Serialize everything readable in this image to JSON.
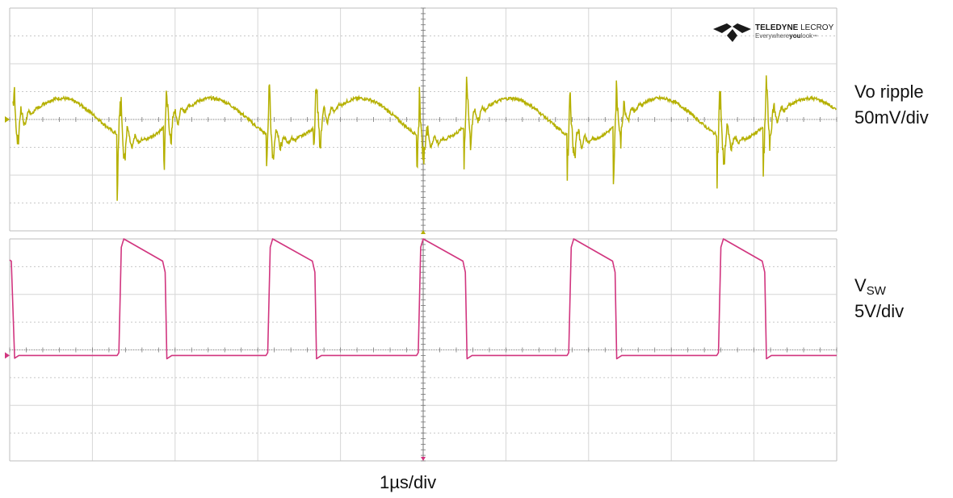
{
  "brand": {
    "name": "TELEDYNE",
    "name_suffix": "LECROY",
    "tagline_pre": "Everywhere",
    "tagline_bold": "you",
    "tagline_post": "look",
    "trademark": "™"
  },
  "channels": {
    "top": {
      "label_line1": "Vo ripple",
      "label_line2": "50mV/div",
      "color": "#b5b000"
    },
    "bottom": {
      "label_main": "V",
      "label_sub": "SW",
      "label_line2": "5V/div",
      "color": "#d1357f"
    }
  },
  "timebase": "1µs/div",
  "colors": {
    "grid_solid": "#d6d6d6",
    "grid_dotted": "#c8c8c8",
    "center_axis": "#777777",
    "panel_border": "#bdbdbd",
    "logo": "#1a1a1a"
  },
  "chart_data": {
    "type": "line",
    "x_unit": "div",
    "x_range": [
      0,
      10
    ],
    "grid": true,
    "panels": [
      {
        "name": "Vo ripple",
        "scale": "50mV/div",
        "y_unit": "div",
        "y_range": [
          -2,
          2
        ],
        "waveform": "sinusoidal ripple with ringing spikes at switching edges",
        "period_div": 1.81,
        "amplitude_div": 0.38,
        "rising_edges_div": [
          1.32,
          3.12,
          4.94,
          6.76,
          8.57
        ],
        "falling_edges_div": [
          0.03,
          1.88,
          3.69,
          5.51,
          7.32,
          9.13
        ],
        "spike_amplitude_div": 0.9
      },
      {
        "name": "VSW",
        "scale": "5V/div",
        "y_unit": "div",
        "y_range": [
          -2,
          2
        ],
        "waveform": "rectangular switch node pulses",
        "period_div": 1.81,
        "high_level_start_div": 2.0,
        "high_level_end_div": 1.6,
        "low_level_div": -0.1,
        "rising_edges_div": [
          1.32,
          3.12,
          4.94,
          6.76,
          8.57
        ],
        "falling_edges_div": [
          0.03,
          1.88,
          3.69,
          5.51,
          7.32,
          9.13
        ]
      }
    ]
  }
}
